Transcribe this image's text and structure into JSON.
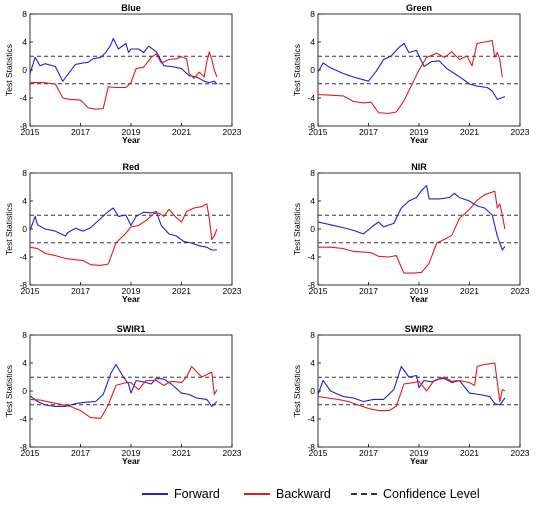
{
  "colors": {
    "forward": "#1f1fd6",
    "backward": "#e01b1b",
    "confidence": "#333333",
    "axis": "#000000"
  },
  "legend": {
    "forward_label": "Forward",
    "backward_label": "Backward",
    "confidence_label": "Confidence Level"
  },
  "chart_data": [
    {
      "type": "line",
      "title": "Blue",
      "xlabel": "Year",
      "ylabel": "Test Statistics",
      "xlim": [
        2015,
        2023
      ],
      "ylim": [
        -8,
        8
      ],
      "xticks": [
        "2015",
        "2017",
        "2019",
        "2021",
        "2023"
      ],
      "yticks": [
        "-8",
        "-4",
        "0",
        "4",
        "8"
      ],
      "confidence_levels": [
        1.96,
        -1.96
      ],
      "series": [
        {
          "name": "Forward",
          "x": [
            2015,
            2015.2,
            2015.4,
            2015.6,
            2016,
            2016.3,
            2016.8,
            2017.1,
            2017.3,
            2017.5,
            2017.8,
            2018,
            2018.2,
            2018.3,
            2018.5,
            2018.8,
            2018.9,
            2019,
            2019.3,
            2019.5,
            2019.7,
            2020,
            2020.3,
            2020.6,
            2021,
            2021.3,
            2021.6,
            2021.9,
            2022.1,
            2022.3,
            2022.4
          ],
          "y": [
            -0.5,
            1.8,
            0.6,
            0.9,
            0.5,
            -1.6,
            0.8,
            1.0,
            1.1,
            1.6,
            1.8,
            2.5,
            3.6,
            4.5,
            3.0,
            3.8,
            2.5,
            3.0,
            3.0,
            2.5,
            3.4,
            2.6,
            0.6,
            0.5,
            0.2,
            -0.8,
            -1.0,
            -1.6,
            -1.8,
            -1.6,
            -2.0
          ]
        },
        {
          "name": "Backward",
          "x": [
            2015,
            2015.5,
            2016,
            2016.3,
            2016.6,
            2017,
            2017.3,
            2017.6,
            2017.9,
            2018.1,
            2018.4,
            2018.8,
            2019,
            2019.2,
            2019.5,
            2019.8,
            2020,
            2020.2,
            2020.5,
            2020.8,
            2021,
            2021.2,
            2021.3,
            2021.5,
            2021.7,
            2021.9,
            2022,
            2022.1,
            2022.2,
            2022.3,
            2022.4
          ],
          "y": [
            -1.8,
            -1.8,
            -2.0,
            -4.0,
            -4.2,
            -4.3,
            -5.4,
            -5.6,
            -5.5,
            -2.4,
            -2.5,
            -2.5,
            -1.8,
            0.2,
            0.4,
            1.8,
            2.3,
            1.0,
            1.5,
            1.6,
            1.9,
            1.6,
            -0.5,
            -1.2,
            -0.3,
            -1.0,
            1.2,
            2.6,
            1.5,
            0.0,
            -1.0
          ]
        }
      ]
    },
    {
      "type": "line",
      "title": "Green",
      "xlabel": "Year",
      "ylabel": "Test Statistics",
      "xlim": [
        2015,
        2023
      ],
      "ylim": [
        -8,
        8
      ],
      "xticks": [
        "2015",
        "2017",
        "2019",
        "2021",
        "2023"
      ],
      "yticks": [
        "-8",
        "-4",
        "0",
        "4",
        "8"
      ],
      "confidence_levels": [
        1.96,
        -1.96
      ],
      "series": [
        {
          "name": "Forward",
          "x": [
            2015,
            2015.2,
            2015.5,
            2016,
            2016.4,
            2016.8,
            2017,
            2017.3,
            2017.6,
            2017.9,
            2018.2,
            2018.4,
            2018.6,
            2018.9,
            2019,
            2019.2,
            2019.5,
            2019.8,
            2020.1,
            2020.4,
            2020.7,
            2021,
            2021.3,
            2021.7,
            2021.9,
            2022.1,
            2022.4
          ],
          "y": [
            -0.3,
            1.0,
            0.3,
            -0.5,
            -1.0,
            -1.4,
            -1.6,
            -0.2,
            1.5,
            2.0,
            3.2,
            3.8,
            2.5,
            2.8,
            2.0,
            0.5,
            1.2,
            1.3,
            0.2,
            -0.5,
            -1.2,
            -2.0,
            -2.3,
            -2.5,
            -3.0,
            -4.2,
            -3.8
          ]
        },
        {
          "name": "Backward",
          "x": [
            2015,
            2015.5,
            2016,
            2016.4,
            2016.8,
            2017.1,
            2017.4,
            2017.8,
            2018.1,
            2018.4,
            2018.8,
            2019,
            2019.3,
            2019.7,
            2020,
            2020.3,
            2020.6,
            2020.9,
            2021.1,
            2021.3,
            2021.6,
            2021.9,
            2022,
            2022.1,
            2022.2,
            2022.3
          ],
          "y": [
            -3.5,
            -3.6,
            -3.7,
            -4.5,
            -4.7,
            -4.6,
            -6.1,
            -6.2,
            -6.0,
            -4.4,
            -1.5,
            0.0,
            1.8,
            2.4,
            1.8,
            2.6,
            1.5,
            2.0,
            0.6,
            3.8,
            4.0,
            4.2,
            1.8,
            2.5,
            1.5,
            -1.0
          ]
        }
      ]
    },
    {
      "type": "line",
      "title": "Red",
      "xlabel": "Year",
      "ylabel": "Test Statistics",
      "xlim": [
        2015,
        2023
      ],
      "ylim": [
        -8,
        8
      ],
      "xticks": [
        "2015",
        "2017",
        "2019",
        "2021",
        "2023"
      ],
      "yticks": [
        "-8",
        "-4",
        "0",
        "4",
        "8"
      ],
      "confidence_levels": [
        1.96,
        -1.96
      ],
      "series": [
        {
          "name": "Forward",
          "x": [
            2015,
            2015.2,
            2015.3,
            2015.6,
            2016,
            2016.4,
            2016.5,
            2016.8,
            2017.1,
            2017.4,
            2017.8,
            2018.1,
            2018.3,
            2018.5,
            2018.8,
            2019,
            2019.2,
            2019.5,
            2019.8,
            2020,
            2020.2,
            2020.5,
            2020.8,
            2021.1,
            2021.4,
            2021.7,
            2022,
            2022.2,
            2022.4
          ],
          "y": [
            -0.2,
            1.8,
            0.6,
            0.0,
            -0.3,
            -1.0,
            -0.5,
            0.1,
            -0.3,
            0.2,
            1.5,
            2.5,
            3.0,
            1.8,
            2.0,
            0.5,
            1.8,
            2.4,
            2.3,
            2.5,
            0.5,
            -0.7,
            -1.0,
            -1.8,
            -2.0,
            -2.4,
            -2.6,
            -3.0,
            -3.0
          ]
        },
        {
          "name": "Backward",
          "x": [
            2015,
            2015.3,
            2015.6,
            2016,
            2016.4,
            2016.8,
            2017.1,
            2017.4,
            2017.8,
            2018.1,
            2018.4,
            2018.8,
            2019,
            2019.3,
            2019.6,
            2019.9,
            2020.1,
            2020.3,
            2020.5,
            2020.8,
            2021,
            2021.2,
            2021.5,
            2021.8,
            2022,
            2022.1,
            2022.2,
            2022.3,
            2022.4
          ],
          "y": [
            -2.6,
            -2.8,
            -3.5,
            -3.8,
            -4.2,
            -4.4,
            -4.5,
            -5.1,
            -5.2,
            -5.0,
            -2.0,
            -0.6,
            0.3,
            0.5,
            1.2,
            2.2,
            2.3,
            1.8,
            2.8,
            1.6,
            1.0,
            2.5,
            3.0,
            3.2,
            3.6,
            1.5,
            -1.5,
            -1.0,
            0.0
          ]
        }
      ]
    },
    {
      "type": "line",
      "title": "NIR",
      "xlabel": "Year",
      "ylabel": "Test Statistics",
      "xlim": [
        2015,
        2023
      ],
      "ylim": [
        -8,
        8
      ],
      "xticks": [
        "2015",
        "2017",
        "2019",
        "2021",
        "2023"
      ],
      "yticks": [
        "-8",
        "-4",
        "0",
        "4",
        "8"
      ],
      "confidence_levels": [
        1.96,
        -1.96
      ],
      "series": [
        {
          "name": "Forward",
          "x": [
            2015,
            2015.5,
            2016,
            2016.4,
            2016.8,
            2017.2,
            2017.4,
            2017.6,
            2018,
            2018.3,
            2018.6,
            2018.9,
            2019.1,
            2019.3,
            2019.4,
            2019.8,
            2020.2,
            2020.4,
            2020.6,
            2021,
            2021.3,
            2021.6,
            2021.9,
            2022.1,
            2022.3,
            2022.4
          ],
          "y": [
            1.0,
            0.6,
            0.2,
            -0.2,
            -0.7,
            0.5,
            1.0,
            0.3,
            0.8,
            3.0,
            4.0,
            4.5,
            5.5,
            6.2,
            4.3,
            4.3,
            4.5,
            5.1,
            4.5,
            4.0,
            3.3,
            3.0,
            2.0,
            -1.0,
            -3.0,
            -2.5
          ]
        },
        {
          "name": "Backward",
          "x": [
            2015,
            2015.5,
            2016,
            2016.4,
            2016.8,
            2017.1,
            2017.4,
            2017.8,
            2018.1,
            2018.4,
            2018.8,
            2019.1,
            2019.4,
            2019.7,
            2020,
            2020.3,
            2020.6,
            2021,
            2021.3,
            2021.6,
            2022,
            2022.1,
            2022.2,
            2022.3,
            2022.4
          ],
          "y": [
            -2.6,
            -2.6,
            -2.8,
            -3.2,
            -3.3,
            -3.4,
            -3.9,
            -4.0,
            -3.8,
            -6.3,
            -6.3,
            -6.2,
            -4.9,
            -2.0,
            -1.5,
            -0.9,
            1.5,
            2.8,
            4.1,
            4.9,
            5.4,
            3.0,
            3.6,
            2.0,
            0.0
          ]
        }
      ]
    },
    {
      "type": "line",
      "title": "SWIR1",
      "xlabel": "Year",
      "ylabel": "Test Statistics",
      "xlim": [
        2015,
        2023
      ],
      "ylim": [
        -8,
        8
      ],
      "xticks": [
        "2015",
        "2017",
        "2019",
        "2021",
        "2023"
      ],
      "yticks": [
        "-8",
        "-4",
        "0",
        "4",
        "8"
      ],
      "confidence_levels": [
        1.96,
        -1.96
      ],
      "series": [
        {
          "name": "Forward",
          "x": [
            2015,
            2015.3,
            2015.6,
            2016,
            2016.4,
            2016.8,
            2017.2,
            2017.6,
            2017.9,
            2018.2,
            2018.4,
            2018.7,
            2018.9,
            2019,
            2019.2,
            2019.5,
            2019.8,
            2020,
            2020.3,
            2020.6,
            2021,
            2021.3,
            2021.6,
            2022,
            2022.2,
            2022.4
          ],
          "y": [
            -0.7,
            -1.5,
            -2.0,
            -2.2,
            -2.2,
            -1.8,
            -1.6,
            -1.5,
            -0.5,
            2.5,
            3.8,
            2.0,
            1.0,
            -0.3,
            1.5,
            1.3,
            1.0,
            1.8,
            1.7,
            1.0,
            -0.3,
            -0.5,
            -1.0,
            -1.2,
            -2.2,
            -1.5
          ]
        },
        {
          "name": "Backward",
          "x": [
            2015,
            2015.4,
            2015.8,
            2016.2,
            2016.6,
            2017,
            2017.4,
            2017.8,
            2018.1,
            2018.4,
            2018.8,
            2019,
            2019.3,
            2019.6,
            2020,
            2020.3,
            2020.6,
            2021,
            2021.2,
            2021.4,
            2021.8,
            2022.2,
            2022.3,
            2022.4
          ],
          "y": [
            -1.2,
            -1.3,
            -1.6,
            -1.9,
            -2.2,
            -2.8,
            -3.8,
            -3.9,
            -2.0,
            0.8,
            1.2,
            1.2,
            0.2,
            1.5,
            1.5,
            0.8,
            1.4,
            1.2,
            2.0,
            3.5,
            2.0,
            2.7,
            -0.5,
            0.2
          ]
        }
      ]
    },
    {
      "type": "line",
      "title": "SWIR2",
      "xlabel": "Year",
      "ylabel": "Test Statistics",
      "xlim": [
        2015,
        2023
      ],
      "ylim": [
        -8,
        8
      ],
      "xticks": [
        "2015",
        "2017",
        "2019",
        "2021",
        "2023"
      ],
      "yticks": [
        "-8",
        "-4",
        "0",
        "4",
        "8"
      ],
      "confidence_levels": [
        1.96,
        -1.96
      ],
      "series": [
        {
          "name": "Forward",
          "x": [
            2015,
            2015.2,
            2015.5,
            2016,
            2016.4,
            2016.8,
            2017.2,
            2017.6,
            2018,
            2018.3,
            2018.6,
            2018.9,
            2019,
            2019.2,
            2019.5,
            2019.8,
            2020,
            2020.3,
            2020.6,
            2021,
            2021.4,
            2021.8,
            2022,
            2022.2,
            2022.4
          ],
          "y": [
            -0.5,
            1.5,
            0.0,
            -0.8,
            -1.0,
            -1.5,
            -1.2,
            -1.2,
            0.2,
            3.5,
            2.0,
            2.2,
            0.5,
            1.5,
            1.3,
            1.7,
            1.8,
            1.2,
            1.5,
            -0.3,
            -0.5,
            -0.8,
            -1.8,
            -2.0,
            -1.0
          ]
        },
        {
          "name": "Backward",
          "x": [
            2015,
            2015.4,
            2015.8,
            2016.2,
            2016.6,
            2017,
            2017.4,
            2017.8,
            2018.1,
            2018.4,
            2018.8,
            2019,
            2019.3,
            2019.6,
            2020,
            2020.3,
            2020.6,
            2021,
            2021.2,
            2021.3,
            2021.6,
            2022,
            2022.2,
            2022.3,
            2022.4
          ],
          "y": [
            -0.8,
            -1.0,
            -1.2,
            -1.5,
            -2.0,
            -2.5,
            -2.8,
            -2.8,
            -2.2,
            1.0,
            1.2,
            1.4,
            0.0,
            1.5,
            2.0,
            1.4,
            1.5,
            1.2,
            0.8,
            3.5,
            3.8,
            4.0,
            -1.5,
            0.2,
            0.0
          ]
        }
      ]
    }
  ]
}
